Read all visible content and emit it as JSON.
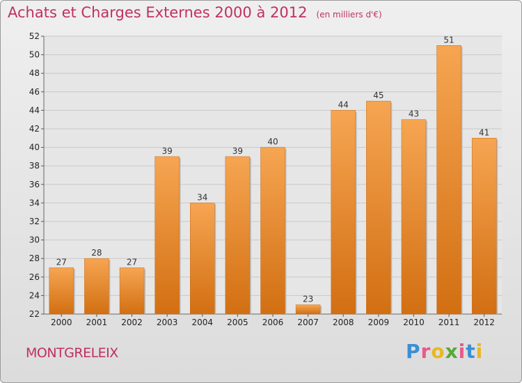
{
  "header": {
    "title": "Achats et Charges Externes 2000 à 2012",
    "subtitle": "(en milliers d'€)"
  },
  "footer": {
    "commune": "MONTGRELEIX",
    "logo": "Proxiti"
  },
  "colors": {
    "accent": "#c0305f",
    "bar_top": "#f6a552",
    "bar_bottom": "#d26f12"
  },
  "chart_data": {
    "type": "bar",
    "title": "Achats et Charges Externes 2000 à 2012",
    "subtitle": "(en milliers d'€)",
    "xlabel": "",
    "ylabel": "",
    "categories": [
      "2000",
      "2001",
      "2002",
      "2003",
      "2004",
      "2005",
      "2006",
      "2007",
      "2008",
      "2009",
      "2010",
      "2011",
      "2012"
    ],
    "values": [
      27,
      28,
      27,
      39,
      34,
      39,
      40,
      23,
      44,
      45,
      43,
      51,
      41
    ],
    "ylim": [
      22,
      52
    ],
    "yticks": [
      22,
      24,
      26,
      28,
      30,
      32,
      34,
      36,
      38,
      40,
      42,
      44,
      46,
      48,
      50,
      52
    ],
    "grid": true,
    "legend": "none"
  }
}
